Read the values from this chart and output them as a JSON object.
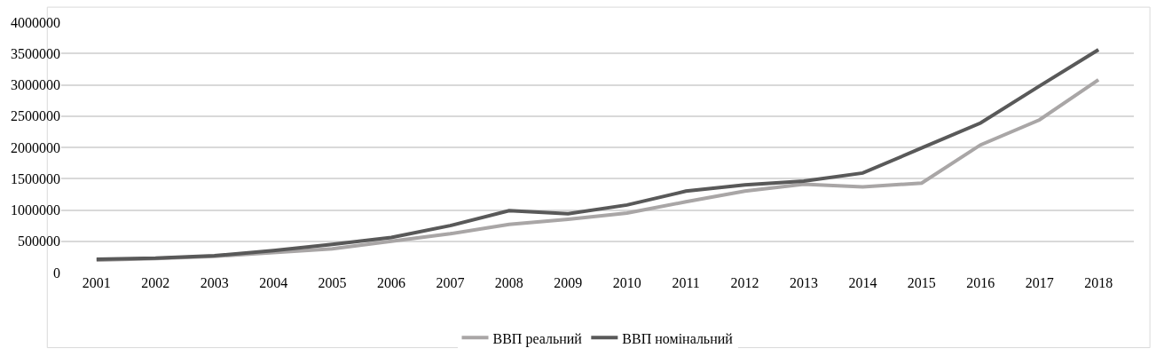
{
  "chart_data": {
    "type": "line",
    "categories": [
      "2001",
      "2002",
      "2003",
      "2004",
      "2005",
      "2006",
      "2007",
      "2008",
      "2009",
      "2010",
      "2011",
      "2012",
      "2013",
      "2014",
      "2015",
      "2016",
      "2017",
      "2018"
    ],
    "series": [
      {
        "name": "ВВП реальний",
        "color": "#a9a6a6",
        "values": [
          200000,
          225000,
          260000,
          320000,
          380000,
          500000,
          620000,
          770000,
          850000,
          950000,
          1130000,
          1300000,
          1410000,
          1370000,
          1430000,
          2040000,
          2440000,
          3080000
        ]
      },
      {
        "name": "ВВП номінальний",
        "color": "#595959",
        "values": [
          211000,
          230000,
          270000,
          350000,
          450000,
          560000,
          750000,
          990000,
          940000,
          1080000,
          1300000,
          1400000,
          1460000,
          1590000,
          1990000,
          2390000,
          2980000,
          3560000
        ]
      }
    ],
    "ylim": [
      0,
      4000000
    ],
    "yticks": [
      0,
      500000,
      1000000,
      1500000,
      2000000,
      2500000,
      3000000,
      3500000,
      4000000
    ],
    "grid": "y",
    "legend": "bottom",
    "marker": "none",
    "line_style": "solid"
  }
}
